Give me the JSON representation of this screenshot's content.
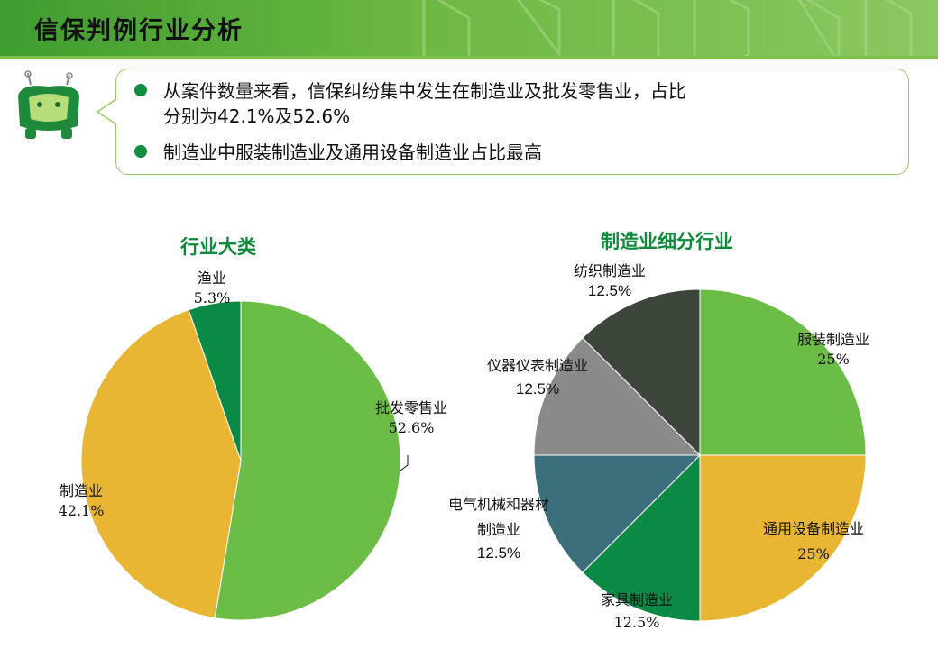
{
  "header": {
    "title": "信保判例行业分析"
  },
  "callout": {
    "bullet1_line1": "从案件数量来看，信保纠纷集中发生在制造业及批发零售业，占比",
    "bullet1_line2": "分别为42.1%及52.6%",
    "bullet2": "制造业中服装制造业及通用设备制造业占比最高"
  },
  "colors": {
    "green_light": "#6cbd45",
    "yellow": "#e9b634",
    "green_dark": "#0a8a45",
    "teal": "#3c6f7c",
    "gray": "#8a8a8a",
    "charcoal": "#3c463a",
    "title_green": "#0d8a3b"
  },
  "chart_data": [
    {
      "type": "pie",
      "title": "行业大类",
      "slices": [
        {
          "label": "批发零售业",
          "value": 52.6,
          "display": "52.6%",
          "color": "#6cbd45"
        },
        {
          "label": "制造业",
          "value": 42.1,
          "display": "42.1%",
          "color": "#e9b634"
        },
        {
          "label": "渔业",
          "value": 5.3,
          "display": "5.3%",
          "color": "#0a8a45"
        }
      ]
    },
    {
      "type": "pie",
      "title": "制造业细分行业",
      "slices": [
        {
          "label": "服装制造业",
          "value": 25,
          "display": "25%",
          "color": "#6cbd45"
        },
        {
          "label": "通用设备制造业",
          "value": 25,
          "display": "25%",
          "color": "#e9b634"
        },
        {
          "label": "家具制造业",
          "value": 12.5,
          "display": "12.5%",
          "color": "#0a8a45"
        },
        {
          "label": "电气机械和器材制造业",
          "value": 12.5,
          "display": "12.5%",
          "color": "#3c6f7c"
        },
        {
          "label": "仪器仪表制造业",
          "value": 12.5,
          "display": "12.5%",
          "color": "#8a8a8a"
        },
        {
          "label": "纺织制造业",
          "value": 12.5,
          "display": "12.5%",
          "color": "#3c463a"
        }
      ]
    }
  ]
}
